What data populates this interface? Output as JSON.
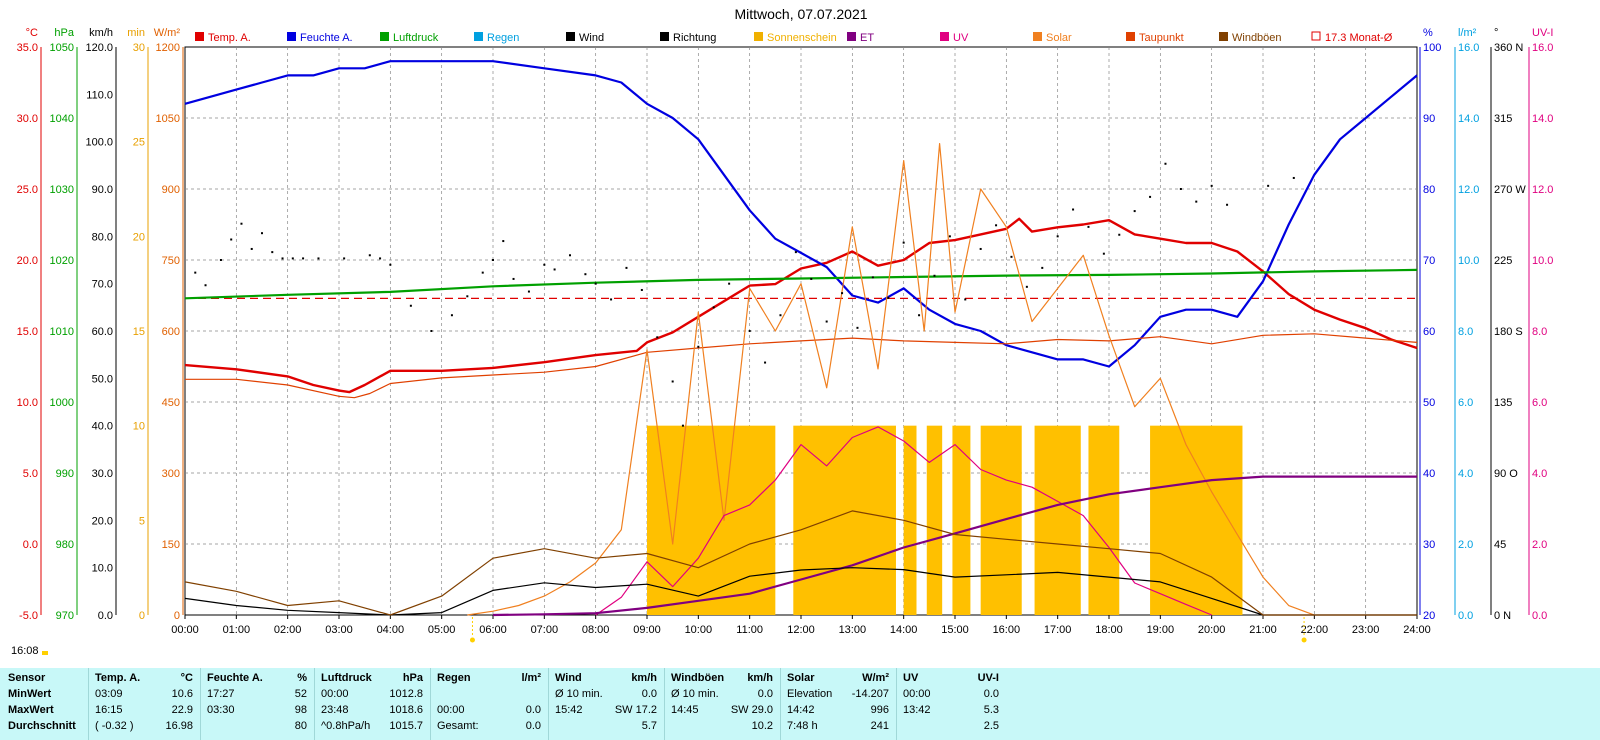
{
  "chart_data": {
    "type": "line",
    "title": "Mittwoch, 07.07.2021",
    "x_ticks": [
      "00:00",
      "01:00",
      "02:00",
      "03:00",
      "04:00",
      "05:00",
      "06:00",
      "07:00",
      "08:00",
      "09:00",
      "10:00",
      "11:00",
      "12:00",
      "13:00",
      "14:00",
      "15:00",
      "16:00",
      "17:00",
      "18:00",
      "19:00",
      "20:00",
      "21:00",
      "22:00",
      "23:00",
      "24:00"
    ],
    "xlim": [
      0,
      24
    ],
    "x_unit": "hour",
    "axes_left": [
      {
        "unit": "°C",
        "color": "#e00000",
        "ticks": [
          "35.0",
          "30.0",
          "25.0",
          "20.0",
          "15.0",
          "10.0",
          "5.0",
          "0.0",
          "-5.0"
        ]
      },
      {
        "unit": "hPa",
        "color": "#00a000",
        "ticks": [
          "1050",
          "1040",
          "1030",
          "1020",
          "1010",
          "1000",
          "990",
          "980",
          "970"
        ]
      },
      {
        "unit": "km/h",
        "color": "#000000",
        "ticks": [
          "120.0",
          "110.0",
          "100.0",
          "90.0",
          "80.0",
          "70.0",
          "60.0",
          "50.0",
          "40.0",
          "30.0",
          "20.0",
          "10.0",
          "0.0"
        ]
      },
      {
        "unit": "min",
        "color": "#e8a000",
        "ticks": [
          "30",
          "25",
          "20",
          "15",
          "10",
          "5",
          "0"
        ]
      },
      {
        "unit": "W/m²",
        "color": "#e06000",
        "ticks": [
          "1200",
          "1050",
          "900",
          "750",
          "600",
          "450",
          "300",
          "150",
          "0"
        ]
      }
    ],
    "axes_right": [
      {
        "unit": "%",
        "color": "#0000e0",
        "ticks": [
          "100",
          "90",
          "80",
          "70",
          "60",
          "50",
          "40",
          "30",
          "20"
        ]
      },
      {
        "unit": "l/m²",
        "color": "#00a0e0",
        "ticks": [
          "16.0",
          "14.0",
          "12.0",
          "10.0",
          "8.0",
          "6.0",
          "4.0",
          "2.0",
          "0.0"
        ]
      },
      {
        "unit": "°",
        "color": "#000000",
        "ticks": [
          "360 N",
          "315",
          "270 W",
          "225",
          "180 S",
          "135",
          "90 O",
          "45",
          "0 N"
        ]
      },
      {
        "unit": "UV-I",
        "color": "#e00080",
        "ticks": [
          "16.0",
          "14.0",
          "12.0",
          "10.0",
          "8.0",
          "6.0",
          "4.0",
          "2.0",
          "0.0"
        ]
      }
    ],
    "legend": [
      {
        "name": "Temp. A.",
        "color": "#e00000"
      },
      {
        "name": "Feuchte A.",
        "color": "#0000e0"
      },
      {
        "name": "Luftdruck",
        "color": "#00a000"
      },
      {
        "name": "Regen",
        "color": "#00a0e0"
      },
      {
        "name": "Wind",
        "color": "#000000"
      },
      {
        "name": "Richtung",
        "color": "#000000"
      },
      {
        "name": "Sonnenschein",
        "color": "#f0b000"
      },
      {
        "name": "ET",
        "color": "#800080"
      },
      {
        "name": "UV",
        "color": "#e00080"
      },
      {
        "name": "Solar",
        "color": "#f08020"
      },
      {
        "name": "Taupunkt",
        "color": "#e04000"
      },
      {
        "name": "Windböen",
        "color": "#804000"
      },
      {
        "name": "17.3 Monat-Ø",
        "color": "#e00000"
      }
    ],
    "monthly_avg_temp": 17.3,
    "series": [
      {
        "name": "Temp. A.",
        "unit": "°C",
        "x": [
          0,
          1,
          2,
          2.5,
          3,
          3.2,
          3.5,
          4,
          5,
          6,
          7,
          8,
          8.8,
          9,
          9.5,
          10,
          10.5,
          11,
          11.5,
          12,
          12.5,
          13,
          13.5,
          14,
          14.5,
          15,
          15.5,
          16,
          16.25,
          16.5,
          17,
          17.5,
          18,
          18.5,
          19,
          19.5,
          20,
          20.5,
          21,
          21.5,
          22,
          22.5,
          23,
          23.5,
          24
        ],
        "y": [
          12.6,
          12.3,
          11.8,
          11.2,
          10.8,
          10.7,
          11.2,
          12.2,
          12.2,
          12.4,
          12.8,
          13.3,
          13.6,
          14.2,
          14.9,
          16.0,
          17.1,
          18.2,
          18.3,
          19.4,
          19.8,
          20.6,
          19.6,
          20.0,
          21.2,
          21.4,
          21.8,
          22.2,
          22.9,
          22.0,
          22.3,
          22.5,
          22.8,
          21.8,
          21.5,
          21.2,
          21.2,
          20.6,
          19.2,
          17.6,
          16.5,
          15.8,
          15.2,
          14.4,
          13.8
        ]
      },
      {
        "name": "Feuchte A.",
        "unit": "%",
        "x": [
          0,
          0.5,
          1,
          1.5,
          2,
          2.5,
          3,
          3.5,
          4,
          5,
          6,
          7,
          8,
          8.5,
          9,
          9.5,
          10,
          10.5,
          11,
          11.5,
          12,
          12.5,
          13,
          13.5,
          14,
          14.5,
          15,
          15.5,
          16,
          16.5,
          17,
          17.5,
          18,
          18.5,
          19,
          19.5,
          20,
          20.5,
          21,
          21.5,
          22,
          22.5,
          23,
          23.5,
          24
        ],
        "y": [
          92,
          93,
          94,
          95,
          96,
          96,
          97,
          97,
          98,
          98,
          98,
          97,
          96,
          95,
          92,
          90,
          87,
          82,
          77,
          73,
          71,
          69,
          65,
          64,
          66,
          63,
          61,
          60,
          58,
          57,
          56,
          56,
          55,
          58,
          62,
          63,
          63,
          62,
          67,
          75,
          82,
          87,
          90,
          93,
          96
        ]
      },
      {
        "name": "Luftdruck",
        "unit": "hPa",
        "x": [
          0,
          2,
          4,
          6,
          8,
          10,
          12,
          14,
          16,
          18,
          20,
          22,
          24
        ],
        "y": [
          1014.6,
          1015.1,
          1015.5,
          1016.3,
          1016.8,
          1017.2,
          1017.4,
          1017.6,
          1017.8,
          1017.9,
          1018.1,
          1018.4,
          1018.6
        ]
      },
      {
        "name": "Taupunkt",
        "unit": "°C",
        "x": [
          0,
          1,
          2,
          3,
          3.3,
          3.6,
          4,
          5,
          6,
          7,
          8,
          9,
          10,
          11,
          12,
          13,
          14,
          15,
          16,
          17,
          18,
          19,
          20,
          21,
          22,
          23,
          24
        ],
        "y": [
          11.6,
          11.6,
          11.2,
          10.4,
          10.3,
          10.6,
          11.3,
          11.7,
          11.9,
          12.1,
          12.5,
          13.5,
          13.8,
          14.1,
          14.3,
          14.5,
          14.3,
          14.2,
          14.1,
          14.4,
          14.3,
          14.6,
          14.1,
          14.7,
          14.8,
          14.5,
          14.2
        ]
      },
      {
        "name": "Solar",
        "unit": "W/m²",
        "x": [
          5.5,
          6,
          6.5,
          7,
          7.5,
          8,
          8.5,
          9,
          9.5,
          10,
          10.5,
          11,
          11.5,
          12,
          12.5,
          13,
          13.5,
          14,
          14.4,
          14.7,
          15,
          15.5,
          16,
          16.5,
          17,
          17.5,
          18,
          18.5,
          19,
          19.5,
          20,
          20.5,
          21,
          21.5,
          22
        ],
        "y": [
          0,
          8,
          20,
          40,
          70,
          110,
          180,
          560,
          150,
          640,
          200,
          690,
          600,
          700,
          480,
          820,
          520,
          960,
          600,
          996,
          640,
          900,
          820,
          620,
          690,
          760,
          590,
          440,
          500,
          360,
          260,
          170,
          80,
          20,
          0
        ]
      },
      {
        "name": "UV",
        "unit": "UV-I",
        "x": [
          8,
          8.5,
          9,
          9.5,
          10,
          10.5,
          11,
          11.5,
          12,
          12.5,
          13,
          13.5,
          14,
          14.5,
          15,
          15.5,
          16,
          16.5,
          17,
          17.5,
          18,
          18.5,
          19,
          19.5,
          20
        ],
        "y": [
          0,
          0.5,
          1.5,
          0.8,
          1.6,
          2.8,
          3.1,
          3.8,
          4.8,
          4.2,
          5.0,
          5.3,
          4.9,
          4.3,
          4.8,
          4.1,
          3.8,
          3.6,
          3.2,
          2.8,
          1.9,
          0.9,
          0.6,
          0.3,
          0
        ]
      },
      {
        "name": "ET",
        "unit": "l/m²",
        "x": [
          6,
          7,
          8,
          9,
          10,
          11,
          12,
          13,
          14,
          15,
          16,
          17,
          18,
          19,
          20,
          21,
          24
        ],
        "y": [
          0,
          0.02,
          0.05,
          0.2,
          0.4,
          0.6,
          1.0,
          1.4,
          1.9,
          2.3,
          2.7,
          3.1,
          3.4,
          3.6,
          3.8,
          3.9,
          3.9
        ]
      },
      {
        "name": "Wind",
        "unit": "km/h",
        "x": [
          0,
          1,
          2,
          3,
          4,
          5,
          6,
          7,
          8,
          9,
          10,
          11,
          12,
          13,
          14,
          15,
          16,
          17,
          18,
          19,
          20,
          21,
          22,
          24
        ],
        "y": [
          3.5,
          2.0,
          1.0,
          0.5,
          0,
          0.5,
          5.2,
          6.8,
          5.8,
          6.5,
          4.0,
          8.2,
          9.5,
          10.0,
          9.6,
          8.0,
          8.5,
          9.0,
          8.0,
          7.0,
          3.5,
          0,
          0,
          0
        ]
      },
      {
        "name": "Windböen",
        "unit": "km/h",
        "x": [
          0,
          1,
          2,
          3,
          4,
          5,
          6,
          7,
          8,
          9,
          10,
          11,
          12,
          13,
          14,
          15,
          16,
          17,
          18,
          19,
          20,
          21,
          22,
          24
        ],
        "y": [
          7,
          5,
          2,
          3,
          0,
          4,
          12,
          14,
          12,
          13,
          10,
          15,
          18,
          22,
          20,
          17,
          16,
          15,
          14,
          13,
          8,
          0,
          0,
          0
        ]
      },
      {
        "name": "Sonnenschein",
        "unit": "min",
        "x": [
          9.0,
          10.0,
          11.5,
          12.0,
          14.5,
          15.4,
          17.0,
          18.5,
          20.6
        ],
        "y": [
          0,
          10,
          0,
          10,
          10,
          10,
          10,
          10,
          0
        ]
      }
    ],
    "sunshine_blocks": [
      [
        9.0,
        11.5
      ],
      [
        11.85,
        13.85
      ],
      [
        14.0,
        14.25
      ],
      [
        14.45,
        14.75
      ],
      [
        14.95,
        15.3
      ],
      [
        15.5,
        16.3
      ],
      [
        16.55,
        17.45
      ],
      [
        17.6,
        18.2
      ],
      [
        18.8,
        20.6
      ]
    ],
    "direction_scatter": [
      [
        0.2,
        217
      ],
      [
        0.4,
        209
      ],
      [
        0.7,
        225
      ],
      [
        0.9,
        238
      ],
      [
        1.1,
        248
      ],
      [
        1.3,
        232
      ],
      [
        1.5,
        242
      ],
      [
        1.7,
        230
      ],
      [
        1.9,
        226
      ],
      [
        2.1,
        226
      ],
      [
        2.3,
        226
      ],
      [
        2.6,
        226
      ],
      [
        3.1,
        226
      ],
      [
        3.6,
        228
      ],
      [
        3.8,
        226
      ],
      [
        4.0,
        222
      ],
      [
        4.4,
        196
      ],
      [
        4.8,
        180
      ],
      [
        5.2,
        190
      ],
      [
        5.5,
        202
      ],
      [
        5.8,
        217
      ],
      [
        6.0,
        225
      ],
      [
        6.2,
        237
      ],
      [
        6.4,
        213
      ],
      [
        6.7,
        205
      ],
      [
        7.0,
        222
      ],
      [
        7.2,
        219
      ],
      [
        7.5,
        228
      ],
      [
        7.8,
        216
      ],
      [
        8.0,
        210
      ],
      [
        8.3,
        200
      ],
      [
        8.6,
        220
      ],
      [
        8.9,
        206
      ],
      [
        9.2,
        176
      ],
      [
        9.5,
        148
      ],
      [
        9.7,
        120
      ],
      [
        10.0,
        170
      ],
      [
        10.3,
        195
      ],
      [
        10.6,
        210
      ],
      [
        11.0,
        180
      ],
      [
        11.3,
        160
      ],
      [
        11.6,
        190
      ],
      [
        11.9,
        230
      ],
      [
        12.2,
        213
      ],
      [
        12.5,
        186
      ],
      [
        12.8,
        204
      ],
      [
        13.1,
        182
      ],
      [
        13.4,
        214
      ],
      [
        13.7,
        201
      ],
      [
        14.0,
        236
      ],
      [
        14.3,
        190
      ],
      [
        14.6,
        215
      ],
      [
        14.9,
        240
      ],
      [
        15.2,
        200
      ],
      [
        15.5,
        232
      ],
      [
        15.8,
        247
      ],
      [
        16.1,
        227
      ],
      [
        16.4,
        208
      ],
      [
        16.7,
        220
      ],
      [
        17.0,
        240
      ],
      [
        17.3,
        257
      ],
      [
        17.6,
        246
      ],
      [
        17.9,
        229
      ],
      [
        18.2,
        241
      ],
      [
        18.5,
        256
      ],
      [
        18.8,
        265
      ],
      [
        19.1,
        286
      ],
      [
        19.4,
        270
      ],
      [
        19.7,
        262
      ],
      [
        20.0,
        272
      ],
      [
        20.3,
        260
      ],
      [
        21.1,
        272
      ],
      [
        21.6,
        277
      ]
    ]
  },
  "markers": {
    "sunrise_x": 5.6,
    "sunset_x": 21.8
  },
  "clock": "16:08",
  "stats": {
    "row_labels": {
      "header": "Sensor",
      "min": "MinWert",
      "max": "MaxWert",
      "avg": "Durchschnitt"
    },
    "groups": [
      {
        "name": "Temp. A.",
        "unit": "°C",
        "rows": [
          [
            "03:09",
            "10.6"
          ],
          [
            "16:15",
            "22.9"
          ],
          [
            "( -0.32 )",
            "16.98"
          ]
        ]
      },
      {
        "name": "Feuchte A.",
        "unit": "%",
        "rows": [
          [
            "17:27",
            "52"
          ],
          [
            "03:30",
            "98"
          ],
          [
            "",
            "80"
          ]
        ]
      },
      {
        "name": "Luftdruck",
        "unit": "hPa",
        "rows": [
          [
            "00:00",
            "1012.8"
          ],
          [
            "23:48",
            "1018.6"
          ],
          [
            "^0.8hPa/h",
            "1015.7"
          ]
        ]
      },
      {
        "name": "Regen",
        "unit": "l/m²",
        "rows": [
          [
            "",
            ""
          ],
          [
            "00:00",
            "0.0"
          ],
          [
            "Gesamt:",
            "0.0"
          ]
        ]
      },
      {
        "name": "Wind",
        "unit": "km/h",
        "rows": [
          [
            "Ø 10 min.",
            "0.0"
          ],
          [
            "15:42",
            "SW 17.2"
          ],
          [
            "",
            "5.7"
          ]
        ]
      },
      {
        "name": "Windböen",
        "unit": "km/h",
        "rows": [
          [
            "Ø 10 min.",
            "0.0"
          ],
          [
            "14:45",
            "SW 29.0"
          ],
          [
            "",
            "10.2"
          ]
        ]
      },
      {
        "name": "Solar",
        "unit": "W/m²",
        "rows": [
          [
            "Elevation",
            "-14.207"
          ],
          [
            "14:42",
            "996"
          ],
          [
            "7:48 h",
            "241"
          ]
        ]
      },
      {
        "name": "UV",
        "unit": "UV-I",
        "rows": [
          [
            "00:00",
            "0.0"
          ],
          [
            "13:42",
            "5.3"
          ],
          [
            "",
            "2.5"
          ]
        ]
      }
    ]
  }
}
